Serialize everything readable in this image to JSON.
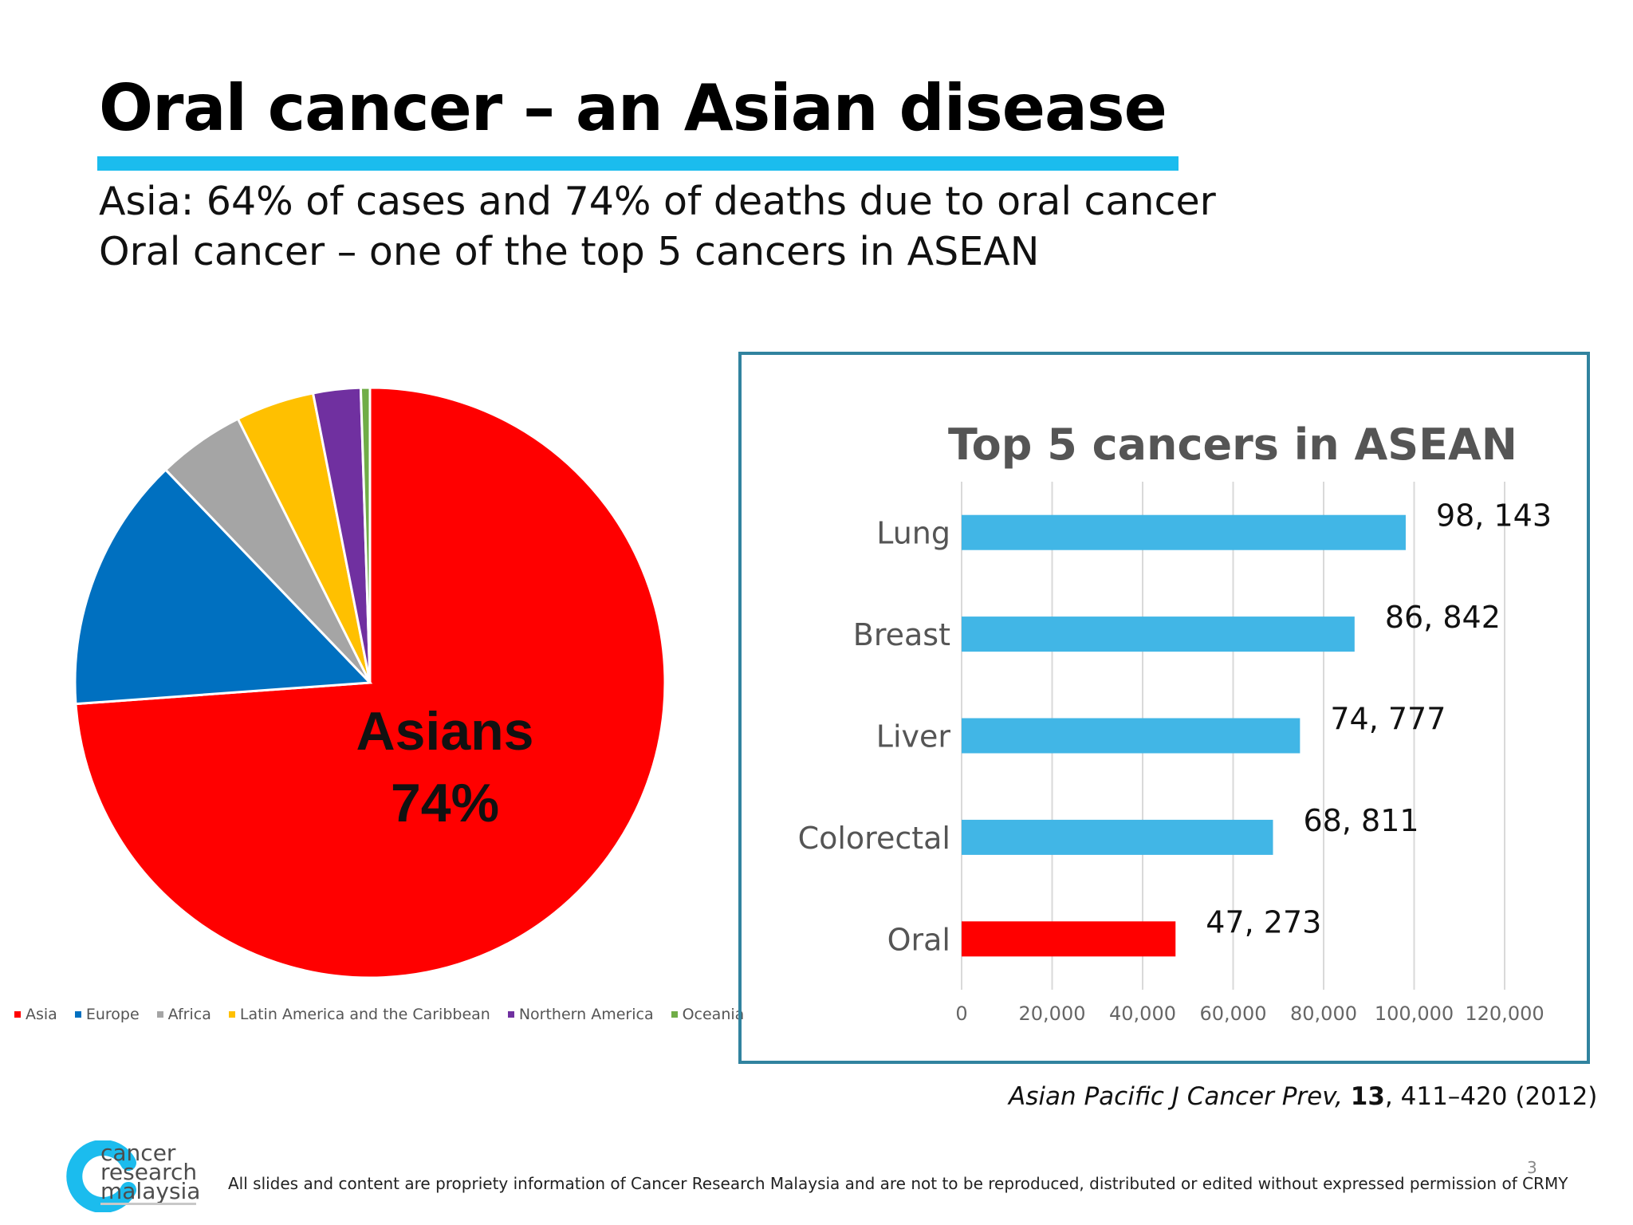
{
  "slide": {
    "title": "Oral cancer – an Asian disease",
    "subtitle_lines": [
      "Asia: 64% of cases and 74% of deaths due to oral cancer",
      "Oral cancer – one of the top 5 cancers in ASEAN"
    ],
    "citation": {
      "journal": "Asian Pacific J Cancer Prev, ",
      "volume": "13",
      "pages": ", 411–420 (2012)"
    },
    "footer": "All slides and content are propriety information of Cancer Research Malaysia and are not to be reproduced, distributed or edited without expressed permission of CRMY",
    "page_number": "3",
    "logo": {
      "lines": [
        "cancer",
        "research",
        "malaysia"
      ]
    },
    "accent_color": "#1bbcee"
  },
  "chart_data": [
    {
      "type": "pie",
      "title": "",
      "annotation": [
        "Asians",
        "74%"
      ],
      "labels": [
        "Asia",
        "Europe",
        "Africa",
        "Latin America and the Caribbean",
        "Northern America",
        "Oceania"
      ],
      "values": [
        74,
        14,
        4.8,
        4.3,
        2.6,
        0.5
      ],
      "colors": [
        "#ff0000",
        "#0070c0",
        "#a5a5a5",
        "#ffc000",
        "#7030a0",
        "#70ad47"
      ],
      "legend_position": "bottom"
    },
    {
      "type": "bar",
      "orientation": "horizontal",
      "title": "Top 5 cancers in ASEAN",
      "categories": [
        "Lung",
        "Breast",
        "Liver",
        "Colorectal",
        "Oral"
      ],
      "values": [
        98143,
        86842,
        74777,
        68811,
        47273
      ],
      "data_labels": [
        "98, 143",
        "86, 842",
        "74, 777",
        "68, 811",
        "47, 273"
      ],
      "colors": [
        "#41b6e6",
        "#41b6e6",
        "#41b6e6",
        "#41b6e6",
        "#ff0000"
      ],
      "xlim": [
        0,
        120000
      ],
      "x_ticks": [
        "0",
        "20,000",
        "40,000",
        "60,000",
        "80,000",
        "100,000",
        "120,000"
      ],
      "grid": true
    }
  ]
}
